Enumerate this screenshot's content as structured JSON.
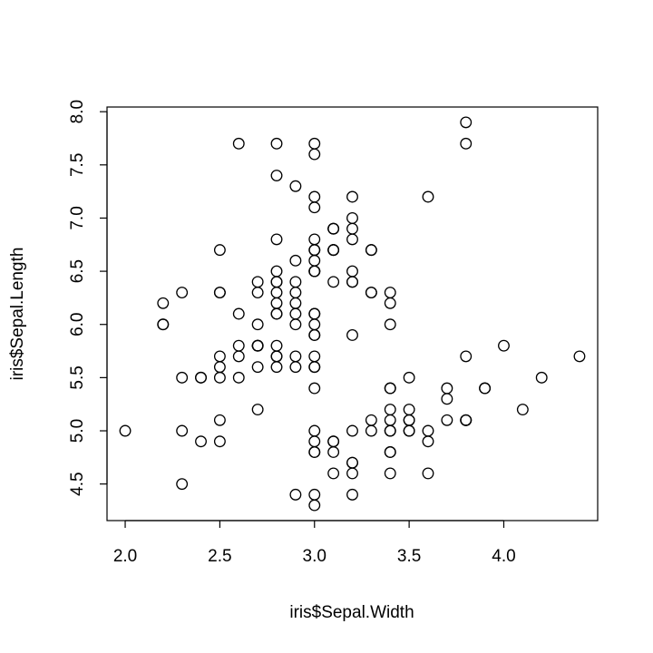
{
  "chart_data": {
    "type": "scatter",
    "xlabel": "iris$Sepal.Width",
    "ylabel": "iris$Sepal.Length",
    "x": [
      3.5,
      3.0,
      3.2,
      3.1,
      3.6,
      3.9,
      3.4,
      3.4,
      2.9,
      3.1,
      3.7,
      3.4,
      3.0,
      3.0,
      4.0,
      4.4,
      3.9,
      3.5,
      3.8,
      3.8,
      3.4,
      3.7,
      3.6,
      3.3,
      3.4,
      3.0,
      3.4,
      3.5,
      3.4,
      3.2,
      3.1,
      3.4,
      4.1,
      4.2,
      3.1,
      3.2,
      3.5,
      3.6,
      3.0,
      3.4,
      3.5,
      2.3,
      3.2,
      3.5,
      3.8,
      3.0,
      3.8,
      3.2,
      3.7,
      3.3,
      3.2,
      3.2,
      3.1,
      2.3,
      2.8,
      2.8,
      3.3,
      2.4,
      2.9,
      2.7,
      2.0,
      3.0,
      2.2,
      2.9,
      2.9,
      3.1,
      3.0,
      2.7,
      2.2,
      2.5,
      3.2,
      2.8,
      2.5,
      2.8,
      2.9,
      3.0,
      2.8,
      3.0,
      2.9,
      2.6,
      2.4,
      2.4,
      2.7,
      2.7,
      3.0,
      3.4,
      3.1,
      2.3,
      3.0,
      2.5,
      2.6,
      3.0,
      2.6,
      2.3,
      2.7,
      3.0,
      2.9,
      2.9,
      2.5,
      2.8,
      3.3,
      2.7,
      3.0,
      2.9,
      3.0,
      3.0,
      2.5,
      2.9,
      2.5,
      3.6,
      3.2,
      2.7,
      3.0,
      2.5,
      2.8,
      3.2,
      3.0,
      3.8,
      2.6,
      2.2,
      3.2,
      2.8,
      2.8,
      2.7,
      3.3,
      3.2,
      2.8,
      3.0,
      2.8,
      3.0,
      2.8,
      3.8,
      2.8,
      2.8,
      2.6,
      3.0,
      3.4,
      3.1,
      3.0,
      3.1,
      3.1,
      3.1,
      2.7,
      3.2,
      3.3,
      3.0,
      2.5,
      3.0,
      3.4,
      3.0
    ],
    "values": [
      5.1,
      4.9,
      4.7,
      4.6,
      5.0,
      5.4,
      4.6,
      5.0,
      4.4,
      4.9,
      5.4,
      4.8,
      4.8,
      4.3,
      5.8,
      5.7,
      5.4,
      5.1,
      5.7,
      5.1,
      5.4,
      5.1,
      4.6,
      5.1,
      4.8,
      5.0,
      5.0,
      5.2,
      5.2,
      4.7,
      4.8,
      5.4,
      5.2,
      5.5,
      4.9,
      5.0,
      5.5,
      4.9,
      4.4,
      5.1,
      5.0,
      4.5,
      4.4,
      5.0,
      5.1,
      4.8,
      5.1,
      4.6,
      5.3,
      5.0,
      7.0,
      6.4,
      6.9,
      5.5,
      6.5,
      5.7,
      6.3,
      4.9,
      6.6,
      5.2,
      5.0,
      5.9,
      6.0,
      6.1,
      5.6,
      6.7,
      5.6,
      5.8,
      6.2,
      5.6,
      5.9,
      6.1,
      6.3,
      6.1,
      6.4,
      6.6,
      6.8,
      6.7,
      6.0,
      5.7,
      5.5,
      5.5,
      5.8,
      6.0,
      5.4,
      6.0,
      6.7,
      6.3,
      5.6,
      5.5,
      5.5,
      6.1,
      5.8,
      5.0,
      5.6,
      5.7,
      5.7,
      6.2,
      5.1,
      5.7,
      6.3,
      5.8,
      7.1,
      6.3,
      6.5,
      7.6,
      4.9,
      7.3,
      6.7,
      7.2,
      6.5,
      6.4,
      6.8,
      5.7,
      5.8,
      6.4,
      6.5,
      7.7,
      7.7,
      6.0,
      6.9,
      5.6,
      7.7,
      6.3,
      6.7,
      7.2,
      6.2,
      6.1,
      6.4,
      7.2,
      7.4,
      7.9,
      6.4,
      6.3,
      6.1,
      7.7,
      6.3,
      6.4,
      6.0,
      6.9,
      6.7,
      6.9,
      5.8,
      6.8,
      6.7,
      6.7,
      6.3,
      6.5,
      6.2,
      5.9
    ],
    "color": "#000000",
    "xlim": [
      1.904,
      4.496
    ],
    "ylim": [
      4.156,
      8.044
    ],
    "xticks": [
      {
        "value": 2,
        "label": "2.0"
      },
      2.5,
      {
        "value": 3,
        "label": "3.0"
      },
      3.5,
      {
        "value": 4,
        "label": "4.0"
      }
    ],
    "yticks": [
      4.5,
      {
        "value": 5,
        "label": "5.0"
      },
      5.5,
      {
        "value": 6,
        "label": "6.0"
      },
      6.5,
      {
        "value": 7,
        "label": "7.0"
      },
      7.5,
      {
        "value": 8,
        "label": "8.0"
      }
    ]
  }
}
